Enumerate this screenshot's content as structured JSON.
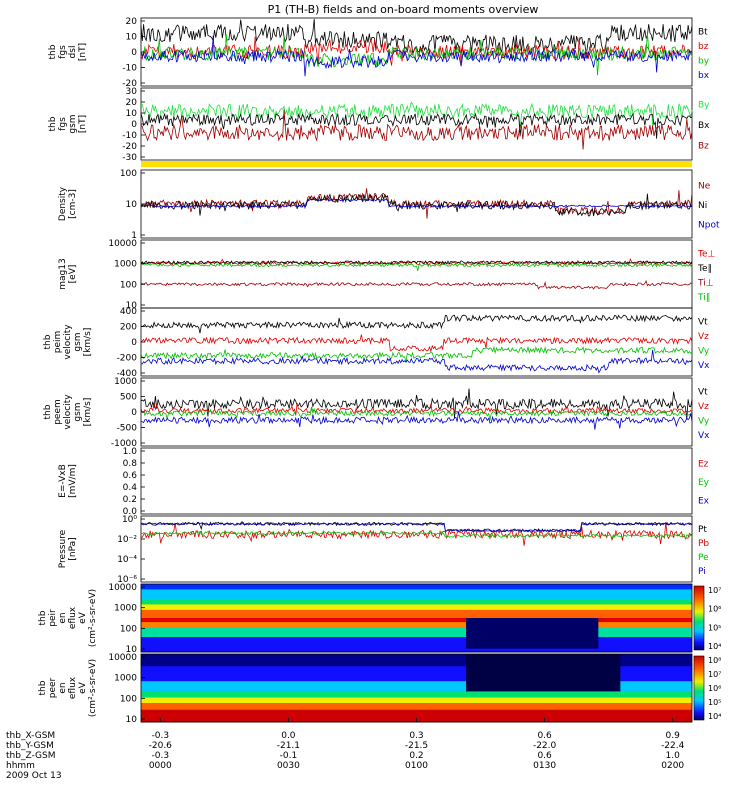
{
  "title": "P1 (TH-B) fields and on-board moments overview",
  "colors": {
    "black": "#000000",
    "red": "#e00000",
    "green": "#00c000",
    "blue": "#0000d0",
    "darkred": "#a00000",
    "lightgreen": "#20e040",
    "yellow": "#ffe000"
  },
  "panels": [
    {
      "id": "fgs-dsl",
      "ylabel": [
        "thb",
        "fgs",
        "dsl",
        "[nT]"
      ],
      "yticks": [
        "20",
        "10",
        "0",
        "-10",
        "-20"
      ],
      "legend": [
        {
          "label": "Bt",
          "color": "black"
        },
        {
          "label": "bz",
          "color": "red"
        },
        {
          "label": "by",
          "color": "green"
        },
        {
          "label": "bx",
          "color": "blue"
        }
      ]
    },
    {
      "id": "fgs-gsm",
      "ylabel": [
        "thb",
        "fgs",
        "gsm",
        "[nT]"
      ],
      "yticks": [
        "30",
        "20",
        "10",
        "0",
        "-10",
        "-20",
        "-30"
      ],
      "legend": [
        {
          "label": "By",
          "color": "lightgreen"
        },
        {
          "label": "Bx",
          "color": "black"
        },
        {
          "label": "Bz",
          "color": "darkred"
        }
      ]
    },
    {
      "id": "density",
      "ylabel": [
        "Density",
        "[cm-3]"
      ],
      "yticks": [
        "100",
        "10",
        "1"
      ],
      "legend": [
        {
          "label": "Ne",
          "color": "darkred"
        },
        {
          "label": "Ni",
          "color": "black"
        },
        {
          "label": "Npot",
          "color": "blue"
        }
      ]
    },
    {
      "id": "temperature",
      "ylabel": [
        "mag13",
        "[eV]"
      ],
      "yticks": [
        "10000",
        "1000",
        "100",
        "10"
      ],
      "legend": [
        {
          "label": "Te⊥",
          "color": "red"
        },
        {
          "label": "Te∥",
          "color": "black"
        },
        {
          "label": "Ti⊥",
          "color": "darkred"
        },
        {
          "label": "Ti∥",
          "color": "green"
        }
      ]
    },
    {
      "id": "peim-velocity",
      "ylabel": [
        "thb",
        "peim",
        "velocity",
        "gsm",
        "[km/s]"
      ],
      "yticks": [
        "400",
        "200",
        "0",
        "-200",
        "-400"
      ],
      "legend": [
        {
          "label": "Vt",
          "color": "black"
        },
        {
          "label": "Vz",
          "color": "red"
        },
        {
          "label": "Vy",
          "color": "green"
        },
        {
          "label": "Vx",
          "color": "blue"
        }
      ]
    },
    {
      "id": "peem-velocity",
      "ylabel": [
        "thb",
        "peem",
        "velocity",
        "gsm",
        "[km/s]"
      ],
      "yticks": [
        "1000",
        "500",
        "0",
        "-500",
        "-1000"
      ],
      "legend": [
        {
          "label": "Vt",
          "color": "black"
        },
        {
          "label": "Vz",
          "color": "red"
        },
        {
          "label": "Vy",
          "color": "green"
        },
        {
          "label": "Vx",
          "color": "blue"
        }
      ]
    },
    {
      "id": "efield",
      "ylabel": [
        "E=-VxB",
        "[mV/m]"
      ],
      "yticks": [
        "1.0",
        "0.8",
        "0.6",
        "0.4",
        "0.2",
        "0.0"
      ],
      "legend": [
        {
          "label": "Ez",
          "color": "red"
        },
        {
          "label": "Ey",
          "color": "green"
        },
        {
          "label": "Ex",
          "color": "blue"
        }
      ]
    },
    {
      "id": "pressure",
      "ylabel": [
        "Pressure",
        "[nPa]"
      ],
      "yticks": [
        "10⁰",
        "10⁻²",
        "10⁻⁴",
        "10⁻⁶"
      ],
      "legend": [
        {
          "label": "Pt",
          "color": "black"
        },
        {
          "label": "Pb",
          "color": "red"
        },
        {
          "label": "Pe",
          "color": "green"
        },
        {
          "label": "Pi",
          "color": "blue"
        }
      ]
    },
    {
      "id": "peir-spec",
      "ylabel": [
        "thb",
        "peir",
        "en",
        "eflux",
        "eV",
        "(cm²-s-sr-eV)"
      ],
      "yticks": [
        "10000",
        "1000",
        "100",
        "10"
      ],
      "colorbar_ticks": [
        "10⁷",
        "10⁶",
        "10⁵",
        "10⁴"
      ]
    },
    {
      "id": "peer-spec",
      "ylabel": [
        "thb",
        "peer",
        "en",
        "eflux",
        "eV",
        "(cm²-s-sr-eV)"
      ],
      "yticks": [
        "10000",
        "1000",
        "100",
        "10"
      ],
      "colorbar_ticks": [
        "10⁸",
        "10⁷",
        "10⁶",
        "10⁵",
        "10⁴"
      ]
    }
  ],
  "xaxis": {
    "rows": [
      {
        "label": "thb_X-GSM",
        "values": [
          "-0.3",
          "0.0",
          "0.3",
          "0.6",
          "0.9"
        ]
      },
      {
        "label": "thb_Y-GSM",
        "values": [
          "-20.6",
          "-21.1",
          "-21.5",
          "-22.0",
          "-22.4"
        ]
      },
      {
        "label": "thb_Z-GSM",
        "values": [
          "-0.3",
          "-0.1",
          "0.2",
          "0.6",
          "1.0"
        ]
      },
      {
        "label": "hhmm",
        "values": [
          "0000",
          "0030",
          "0100",
          "0130",
          "0200"
        ]
      }
    ],
    "date": "2009 Oct 13"
  },
  "chart_data": [
    {
      "type": "line",
      "title": "P1 (TH-B) fields and on-board moments overview",
      "x": [
        "0000",
        "0030",
        "0100",
        "0130",
        "0200"
      ],
      "xlabel": "hhmm",
      "ylabel": "thb fgs dsl [nT]",
      "ylim": [
        -20,
        20
      ],
      "series": [
        {
          "name": "Bt",
          "values": [
            12,
            14,
            8,
            5,
            10
          ]
        },
        {
          "name": "bz",
          "values": [
            3,
            4,
            6,
            0,
            2
          ]
        },
        {
          "name": "by",
          "values": [
            2,
            2,
            -4,
            1,
            3
          ]
        },
        {
          "name": "bx",
          "values": [
            -2,
            -1,
            -6,
            -2,
            -1
          ]
        }
      ]
    },
    {
      "type": "line",
      "ylabel": "Density [cm-3]",
      "ylim": [
        1,
        100
      ],
      "yscale": "log",
      "series": [
        {
          "name": "Ne",
          "values": [
            8,
            20,
            10,
            4,
            10
          ]
        },
        {
          "name": "Ni",
          "values": [
            7,
            18,
            9,
            3,
            9
          ]
        },
        {
          "name": "Npot",
          "values": [
            7,
            15,
            8,
            6,
            9
          ]
        }
      ]
    },
    {
      "type": "line",
      "ylabel": "thb peim velocity gsm [km/s]",
      "ylim": [
        -400,
        400
      ],
      "series": [
        {
          "name": "Vt",
          "values": [
            300,
            260,
            320,
            350,
            280
          ]
        },
        {
          "name": "Vz",
          "values": [
            40,
            60,
            0,
            20,
            40
          ]
        },
        {
          "name": "Vy",
          "values": [
            -80,
            -100,
            -60,
            -80,
            -100
          ]
        },
        {
          "name": "Vx",
          "values": [
            -220,
            -180,
            -280,
            -300,
            -200
          ]
        }
      ]
    },
    {
      "type": "heatmap",
      "ylabel": "thb peir en eflux",
      "yscale": "log",
      "ylim": [
        7,
        20000
      ]
    },
    {
      "type": "heatmap",
      "ylabel": "thb peer en eflux",
      "yscale": "log",
      "ylim": [
        7,
        20000
      ]
    }
  ]
}
